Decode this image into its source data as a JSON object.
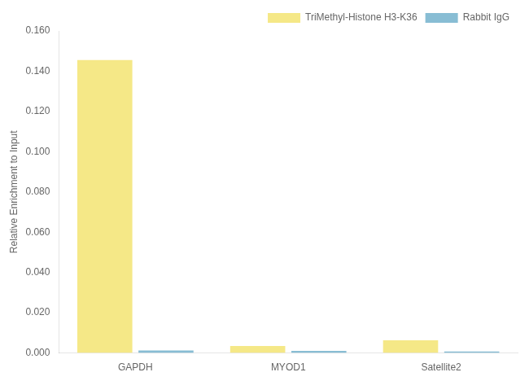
{
  "chart_data": {
    "type": "bar",
    "categories": [
      "GAPDH",
      "MYOD1",
      "Satellite2"
    ],
    "series": [
      {
        "name": "TriMethyl-Histone H3-K36",
        "color": "#F5E887",
        "values": [
          0.1455,
          0.0035,
          0.0063
        ]
      },
      {
        "name": "Rabbit IgG",
        "color": "#88BDD4",
        "values": [
          0.0013,
          0.0011,
          0.0007
        ]
      }
    ],
    "ylabel": "Relative Enrichment to Input",
    "ylim": [
      0,
      0.16
    ],
    "yticks": [
      {
        "value": 0.0,
        "label": "0.000"
      },
      {
        "value": 0.02,
        "label": "0.020"
      },
      {
        "value": 0.04,
        "label": "0.040"
      },
      {
        "value": 0.06,
        "label": "0.060"
      },
      {
        "value": 0.08,
        "label": "0.080"
      },
      {
        "value": 0.1,
        "label": "0.100"
      },
      {
        "value": 0.12,
        "label": "0.120"
      },
      {
        "value": 0.14,
        "label": "0.140"
      },
      {
        "value": 0.16,
        "label": "0.160"
      }
    ],
    "grid": false,
    "legend": "upper right"
  }
}
